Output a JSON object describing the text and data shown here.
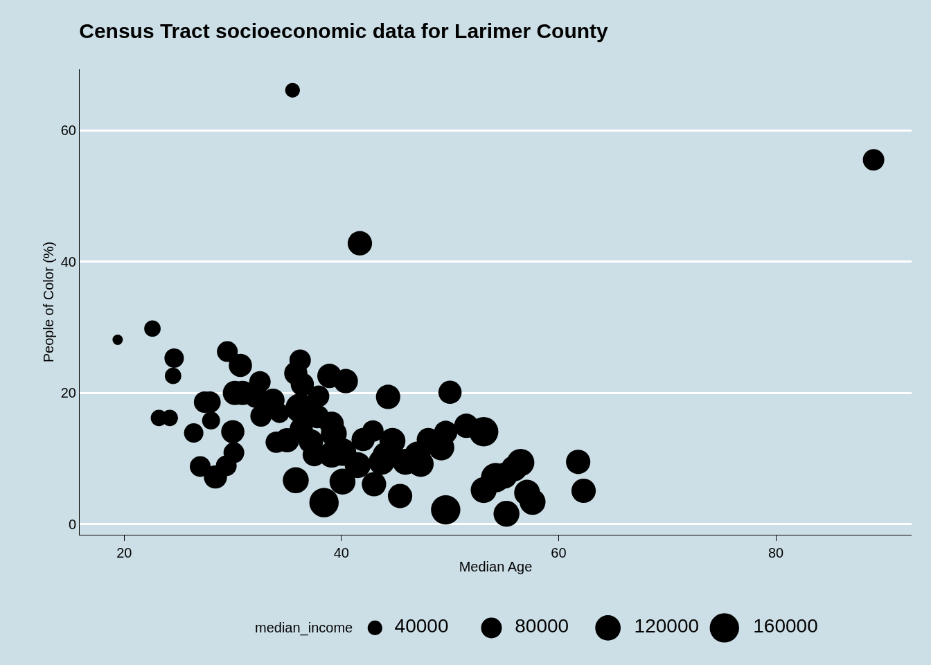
{
  "chart_data": {
    "type": "bubble",
    "title": "Census Tract socioeconomic data for Larimer County",
    "xlabel": "Median Age",
    "ylabel": "People of Color (%)",
    "legend_title": "median_income",
    "grid": "y",
    "marker": "circle",
    "xlim": [
      15.9,
      92.5
    ],
    "xticks": [
      20,
      40,
      60,
      80
    ],
    "ylim": [
      -1.6,
      69.3
    ],
    "yticks": [
      0,
      20,
      40,
      60
    ],
    "size_legend": [
      40000,
      80000,
      120000,
      160000
    ],
    "series": [
      {
        "color": "#000000",
        "x": [
          19.4,
          22.6,
          24.6,
          24.5,
          23.2,
          24.2,
          26.4,
          27.0,
          28.4,
          28.0,
          27.4,
          27.9,
          29.5,
          30.7,
          30.2,
          30.9,
          30.0,
          30.1,
          29.4,
          32.5,
          32.1,
          33.7,
          32.6,
          34.3,
          34.0,
          35.0,
          35.8,
          35.5,
          36.2,
          35.8,
          36.4,
          36.2,
          36.3,
          37.8,
          37.9,
          38.9,
          40.4,
          39.1,
          39.3,
          37.2,
          37.5,
          40.1,
          39.1,
          38.4,
          40.1,
          41.5,
          42.0,
          42.9,
          43.7,
          44.0,
          44.7,
          44.3,
          43.0,
          41.7,
          45.4,
          45.9,
          47.0,
          47.3,
          48.0,
          49.2,
          49.6,
          50.0,
          49.6,
          51.5,
          53.1,
          53.1,
          54.2,
          55.0,
          55.9,
          56.5,
          57.1,
          57.6,
          55.2,
          61.8,
          62.3,
          89.0
        ],
        "values": [
          28.1,
          29.8,
          25.3,
          22.6,
          16.2,
          16.2,
          13.9,
          8.8,
          7.2,
          15.8,
          18.6,
          18.6,
          26.3,
          24.2,
          20.0,
          20.0,
          14.1,
          10.9,
          8.9,
          21.7,
          19.5,
          18.9,
          16.5,
          16.9,
          12.5,
          12.8,
          6.7,
          66.1,
          25.0,
          23.0,
          21.3,
          17.7,
          14.5,
          16.4,
          19.5,
          22.6,
          21.8,
          15.3,
          13.8,
          12.6,
          10.6,
          11.0,
          10.6,
          3.3,
          6.5,
          9.0,
          12.9,
          14.2,
          9.5,
          10.6,
          12.7,
          19.4,
          6.1,
          42.8,
          4.3,
          9.5,
          10.6,
          9.2,
          12.9,
          11.7,
          14.0,
          20.1,
          2.2,
          15.0,
          14.1,
          5.2,
          7.1,
          7.4,
          8.5,
          9.4,
          4.8,
          3.4,
          1.6,
          9.5,
          5.1,
          55.5
        ],
        "sizes": [
          20000,
          50000,
          70000,
          50000,
          50000,
          50000,
          70000,
          80000,
          100000,
          60000,
          85000,
          85000,
          80000,
          100000,
          110000,
          110000,
          100000,
          80000,
          80000,
          85000,
          100000,
          100000,
          85000,
          70000,
          85000,
          110000,
          125000,
          40000,
          85000,
          100000,
          100000,
          160000,
          100000,
          100000,
          85000,
          110000,
          110000,
          110000,
          125000,
          110000,
          100000,
          140000,
          125000,
          160000,
          125000,
          125000,
          100000,
          85000,
          125000,
          110000,
          125000,
          110000,
          110000,
          110000,
          110000,
          125000,
          125000,
          125000,
          100000,
          125000,
          100000,
          100000,
          160000,
          110000,
          160000,
          125000,
          160000,
          125000,
          125000,
          140000,
          125000,
          125000,
          125000,
          110000,
          110000,
          85000
        ]
      }
    ]
  }
}
